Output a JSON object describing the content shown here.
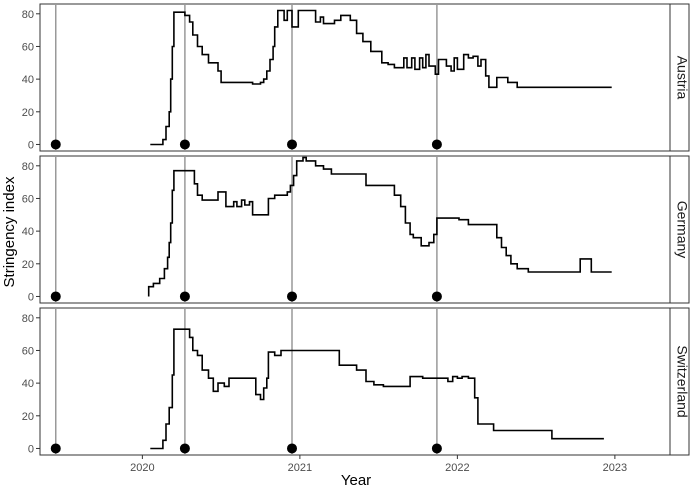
{
  "chart_data": {
    "type": "line",
    "xlabel": "Year",
    "ylabel": "Stringency index",
    "xlim": [
      2019.35,
      2023.35
    ],
    "ylim": [
      -4,
      86
    ],
    "x_ticks": [
      2020,
      2021,
      2022,
      2023
    ],
    "x_tick_labels": [
      "2020",
      "2021",
      "2022",
      "2023"
    ],
    "y_ticks": [
      0,
      20,
      40,
      60,
      80
    ],
    "y_tick_labels": [
      "0",
      "20",
      "40",
      "60",
      "80"
    ],
    "grid": false,
    "colors": {
      "line": "#000000",
      "vline": "#999999",
      "panel_border": "#333333",
      "tick_text": "#4d4d4d"
    },
    "vlines": [
      2019.45,
      2020.27,
      2020.95,
      2021.87
    ],
    "markers": [
      {
        "x": 2019.45,
        "y": 0
      },
      {
        "x": 2020.27,
        "y": 0
      },
      {
        "x": 2020.95,
        "y": 0
      },
      {
        "x": 2021.87,
        "y": 0
      }
    ],
    "panels": [
      {
        "name": "Austria",
        "points": [
          [
            2020.05,
            0
          ],
          [
            2020.13,
            0
          ],
          [
            2020.13,
            3
          ],
          [
            2020.15,
            3
          ],
          [
            2020.15,
            11
          ],
          [
            2020.17,
            11
          ],
          [
            2020.17,
            20
          ],
          [
            2020.18,
            20
          ],
          [
            2020.18,
            40
          ],
          [
            2020.19,
            40
          ],
          [
            2020.19,
            60
          ],
          [
            2020.2,
            60
          ],
          [
            2020.2,
            81
          ],
          [
            2020.27,
            81
          ],
          [
            2020.27,
            79
          ],
          [
            2020.3,
            79
          ],
          [
            2020.3,
            75
          ],
          [
            2020.32,
            75
          ],
          [
            2020.32,
            67
          ],
          [
            2020.35,
            67
          ],
          [
            2020.35,
            60
          ],
          [
            2020.38,
            60
          ],
          [
            2020.38,
            55
          ],
          [
            2020.42,
            55
          ],
          [
            2020.42,
            50
          ],
          [
            2020.48,
            50
          ],
          [
            2020.48,
            45
          ],
          [
            2020.5,
            45
          ],
          [
            2020.5,
            38
          ],
          [
            2020.7,
            38
          ],
          [
            2020.7,
            37
          ],
          [
            2020.75,
            37
          ],
          [
            2020.75,
            38
          ],
          [
            2020.77,
            38
          ],
          [
            2020.77,
            40
          ],
          [
            2020.79,
            40
          ],
          [
            2020.79,
            45
          ],
          [
            2020.81,
            45
          ],
          [
            2020.81,
            52
          ],
          [
            2020.83,
            52
          ],
          [
            2020.83,
            60
          ],
          [
            2020.84,
            60
          ],
          [
            2020.84,
            72
          ],
          [
            2020.86,
            72
          ],
          [
            2020.86,
            82
          ],
          [
            2020.9,
            82
          ],
          [
            2020.9,
            76
          ],
          [
            2020.92,
            76
          ],
          [
            2020.92,
            82
          ],
          [
            2020.95,
            82
          ],
          [
            2020.95,
            72
          ],
          [
            2020.99,
            72
          ],
          [
            2020.99,
            82
          ],
          [
            2021.1,
            82
          ],
          [
            2021.1,
            75
          ],
          [
            2021.13,
            75
          ],
          [
            2021.13,
            78
          ],
          [
            2021.15,
            78
          ],
          [
            2021.15,
            74
          ],
          [
            2021.22,
            74
          ],
          [
            2021.22,
            76
          ],
          [
            2021.26,
            76
          ],
          [
            2021.26,
            79
          ],
          [
            2021.32,
            79
          ],
          [
            2021.32,
            76
          ],
          [
            2021.36,
            76
          ],
          [
            2021.36,
            68
          ],
          [
            2021.4,
            68
          ],
          [
            2021.4,
            63
          ],
          [
            2021.45,
            63
          ],
          [
            2021.45,
            57
          ],
          [
            2021.52,
            57
          ],
          [
            2021.52,
            50
          ],
          [
            2021.56,
            50
          ],
          [
            2021.56,
            49
          ],
          [
            2021.6,
            49
          ],
          [
            2021.6,
            47
          ],
          [
            2021.66,
            47
          ],
          [
            2021.66,
            53
          ],
          [
            2021.68,
            53
          ],
          [
            2021.68,
            47
          ],
          [
            2021.71,
            47
          ],
          [
            2021.71,
            53
          ],
          [
            2021.73,
            53
          ],
          [
            2021.73,
            46
          ],
          [
            2021.76,
            46
          ],
          [
            2021.76,
            53
          ],
          [
            2021.78,
            53
          ],
          [
            2021.78,
            47
          ],
          [
            2021.8,
            47
          ],
          [
            2021.8,
            55
          ],
          [
            2021.82,
            55
          ],
          [
            2021.82,
            48
          ],
          [
            2021.86,
            48
          ],
          [
            2021.86,
            43
          ],
          [
            2021.88,
            43
          ],
          [
            2021.88,
            52
          ],
          [
            2021.93,
            52
          ],
          [
            2021.93,
            48
          ],
          [
            2021.96,
            48
          ],
          [
            2021.96,
            45
          ],
          [
            2021.98,
            45
          ],
          [
            2021.98,
            53
          ],
          [
            2022.0,
            53
          ],
          [
            2022.0,
            46
          ],
          [
            2022.04,
            46
          ],
          [
            2022.04,
            55
          ],
          [
            2022.07,
            55
          ],
          [
            2022.07,
            53
          ],
          [
            2022.1,
            53
          ],
          [
            2022.1,
            54
          ],
          [
            2022.13,
            54
          ],
          [
            2022.13,
            48
          ],
          [
            2022.15,
            48
          ],
          [
            2022.15,
            52
          ],
          [
            2022.18,
            52
          ],
          [
            2022.18,
            42
          ],
          [
            2022.2,
            42
          ],
          [
            2022.2,
            35
          ],
          [
            2022.25,
            35
          ],
          [
            2022.25,
            41
          ],
          [
            2022.32,
            41
          ],
          [
            2022.32,
            38
          ],
          [
            2022.38,
            38
          ],
          [
            2022.38,
            35
          ],
          [
            2022.98,
            35
          ]
        ]
      },
      {
        "name": "Germany",
        "points": [
          [
            2020.04,
            0
          ],
          [
            2020.04,
            6
          ],
          [
            2020.07,
            6
          ],
          [
            2020.07,
            8
          ],
          [
            2020.11,
            8
          ],
          [
            2020.11,
            11
          ],
          [
            2020.14,
            11
          ],
          [
            2020.14,
            17
          ],
          [
            2020.16,
            17
          ],
          [
            2020.16,
            24
          ],
          [
            2020.17,
            24
          ],
          [
            2020.17,
            33
          ],
          [
            2020.18,
            33
          ],
          [
            2020.18,
            45
          ],
          [
            2020.19,
            45
          ],
          [
            2020.19,
            65
          ],
          [
            2020.2,
            65
          ],
          [
            2020.2,
            77
          ],
          [
            2020.33,
            77
          ],
          [
            2020.33,
            69
          ],
          [
            2020.35,
            69
          ],
          [
            2020.35,
            62
          ],
          [
            2020.38,
            62
          ],
          [
            2020.38,
            59
          ],
          [
            2020.48,
            59
          ],
          [
            2020.48,
            64
          ],
          [
            2020.53,
            64
          ],
          [
            2020.53,
            55
          ],
          [
            2020.58,
            55
          ],
          [
            2020.58,
            58
          ],
          [
            2020.6,
            58
          ],
          [
            2020.6,
            55
          ],
          [
            2020.63,
            55
          ],
          [
            2020.63,
            59
          ],
          [
            2020.65,
            59
          ],
          [
            2020.65,
            56
          ],
          [
            2020.68,
            56
          ],
          [
            2020.68,
            58
          ],
          [
            2020.7,
            58
          ],
          [
            2020.7,
            50
          ],
          [
            2020.8,
            50
          ],
          [
            2020.8,
            60
          ],
          [
            2020.84,
            60
          ],
          [
            2020.84,
            62
          ],
          [
            2020.92,
            62
          ],
          [
            2020.92,
            64
          ],
          [
            2020.94,
            64
          ],
          [
            2020.94,
            68
          ],
          [
            2020.96,
            68
          ],
          [
            2020.96,
            74
          ],
          [
            2020.98,
            74
          ],
          [
            2020.98,
            83
          ],
          [
            2021.02,
            83
          ],
          [
            2021.02,
            85
          ],
          [
            2021.04,
            85
          ],
          [
            2021.04,
            83
          ],
          [
            2021.1,
            83
          ],
          [
            2021.1,
            80
          ],
          [
            2021.15,
            80
          ],
          [
            2021.15,
            78
          ],
          [
            2021.2,
            78
          ],
          [
            2021.2,
            75
          ],
          [
            2021.42,
            75
          ],
          [
            2021.42,
            68
          ],
          [
            2021.6,
            68
          ],
          [
            2021.6,
            62
          ],
          [
            2021.64,
            62
          ],
          [
            2021.64,
            55
          ],
          [
            2021.67,
            55
          ],
          [
            2021.67,
            45
          ],
          [
            2021.7,
            45
          ],
          [
            2021.7,
            38
          ],
          [
            2021.72,
            38
          ],
          [
            2021.72,
            36
          ],
          [
            2021.77,
            36
          ],
          [
            2021.77,
            31
          ],
          [
            2021.82,
            31
          ],
          [
            2021.82,
            33
          ],
          [
            2021.85,
            33
          ],
          [
            2021.85,
            38
          ],
          [
            2021.87,
            38
          ],
          [
            2021.87,
            48
          ],
          [
            2022.01,
            48
          ],
          [
            2022.01,
            47
          ],
          [
            2022.07,
            47
          ],
          [
            2022.07,
            44
          ],
          [
            2022.25,
            44
          ],
          [
            2022.25,
            36
          ],
          [
            2022.28,
            36
          ],
          [
            2022.28,
            30
          ],
          [
            2022.31,
            30
          ],
          [
            2022.31,
            25
          ],
          [
            2022.34,
            25
          ],
          [
            2022.34,
            20
          ],
          [
            2022.38,
            20
          ],
          [
            2022.38,
            17
          ],
          [
            2022.45,
            17
          ],
          [
            2022.45,
            15
          ],
          [
            2022.78,
            15
          ],
          [
            2022.78,
            23
          ],
          [
            2022.85,
            23
          ],
          [
            2022.85,
            15
          ],
          [
            2022.98,
            15
          ]
        ]
      },
      {
        "name": "Switzerland",
        "points": [
          [
            2020.05,
            0
          ],
          [
            2020.13,
            0
          ],
          [
            2020.13,
            5
          ],
          [
            2020.15,
            5
          ],
          [
            2020.15,
            15
          ],
          [
            2020.17,
            15
          ],
          [
            2020.17,
            25
          ],
          [
            2020.19,
            25
          ],
          [
            2020.19,
            45
          ],
          [
            2020.2,
            45
          ],
          [
            2020.2,
            73
          ],
          [
            2020.3,
            73
          ],
          [
            2020.3,
            68
          ],
          [
            2020.32,
            68
          ],
          [
            2020.32,
            60
          ],
          [
            2020.35,
            60
          ],
          [
            2020.35,
            57
          ],
          [
            2020.38,
            57
          ],
          [
            2020.38,
            48
          ],
          [
            2020.42,
            48
          ],
          [
            2020.42,
            43
          ],
          [
            2020.45,
            43
          ],
          [
            2020.45,
            35
          ],
          [
            2020.48,
            35
          ],
          [
            2020.48,
            40
          ],
          [
            2020.52,
            40
          ],
          [
            2020.52,
            38
          ],
          [
            2020.55,
            38
          ],
          [
            2020.55,
            43
          ],
          [
            2020.72,
            43
          ],
          [
            2020.72,
            33
          ],
          [
            2020.75,
            33
          ],
          [
            2020.75,
            30
          ],
          [
            2020.77,
            30
          ],
          [
            2020.77,
            37
          ],
          [
            2020.79,
            37
          ],
          [
            2020.79,
            43
          ],
          [
            2020.8,
            43
          ],
          [
            2020.8,
            59
          ],
          [
            2020.84,
            59
          ],
          [
            2020.84,
            57
          ],
          [
            2020.88,
            57
          ],
          [
            2020.88,
            60
          ],
          [
            2021.25,
            60
          ],
          [
            2021.25,
            51
          ],
          [
            2021.36,
            51
          ],
          [
            2021.36,
            48
          ],
          [
            2021.42,
            48
          ],
          [
            2021.42,
            41
          ],
          [
            2021.47,
            41
          ],
          [
            2021.47,
            39
          ],
          [
            2021.53,
            39
          ],
          [
            2021.53,
            38
          ],
          [
            2021.7,
            38
          ],
          [
            2021.7,
            44
          ],
          [
            2021.78,
            44
          ],
          [
            2021.78,
            43
          ],
          [
            2021.94,
            43
          ],
          [
            2021.94,
            41
          ],
          [
            2021.97,
            41
          ],
          [
            2021.97,
            44
          ],
          [
            2022.0,
            44
          ],
          [
            2022.0,
            43
          ],
          [
            2022.03,
            43
          ],
          [
            2022.03,
            44
          ],
          [
            2022.07,
            44
          ],
          [
            2022.07,
            43
          ],
          [
            2022.11,
            43
          ],
          [
            2022.11,
            31
          ],
          [
            2022.13,
            31
          ],
          [
            2022.13,
            15
          ],
          [
            2022.23,
            15
          ],
          [
            2022.23,
            11
          ],
          [
            2022.6,
            11
          ],
          [
            2022.6,
            6
          ],
          [
            2022.93,
            6
          ]
        ]
      }
    ]
  }
}
